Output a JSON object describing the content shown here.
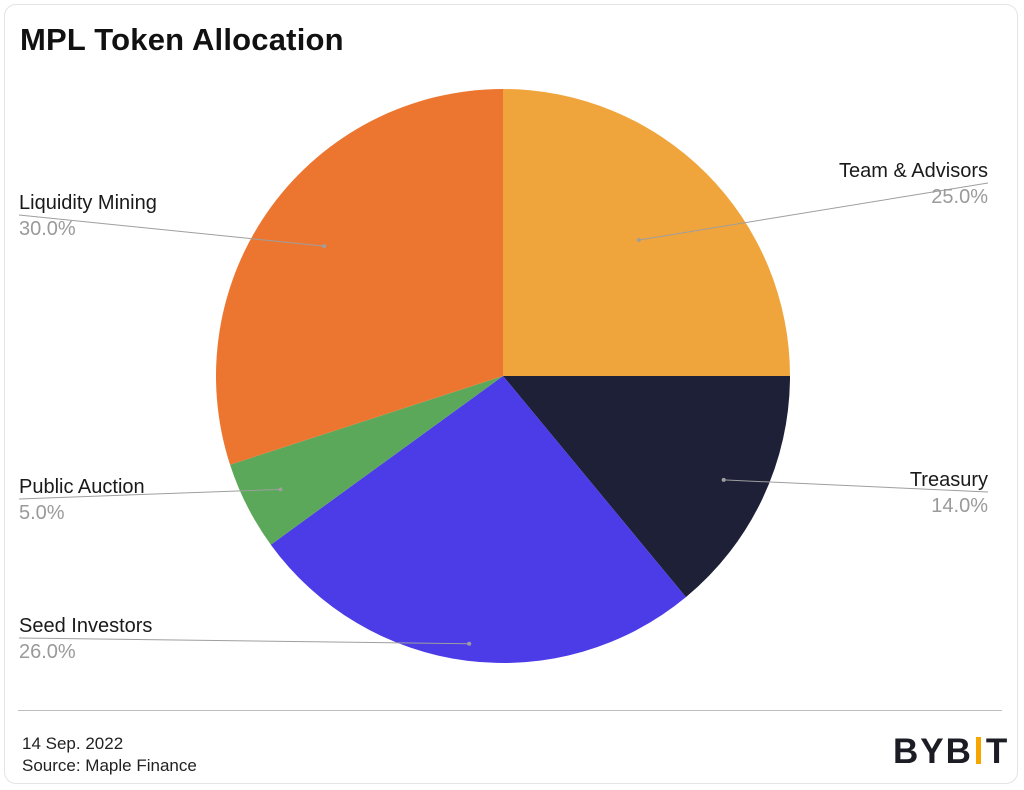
{
  "chart_data": {
    "type": "pie",
    "title": "MPL Token Allocation",
    "slices": [
      {
        "label": "Team & Advisors",
        "value": 25.0,
        "value_label": "25.0%",
        "color": "#F0A53C",
        "label_side": "right"
      },
      {
        "label": "Treasury",
        "value": 14.0,
        "value_label": "14.0%",
        "color": "#1E2038",
        "label_side": "right"
      },
      {
        "label": "Seed Investors",
        "value": 26.0,
        "value_label": "26.0%",
        "color": "#4B3CE8",
        "label_side": "left"
      },
      {
        "label": "Public Auction",
        "value": 5.0,
        "value_label": "5.0%",
        "color": "#5BA85A",
        "label_side": "left"
      },
      {
        "label": "Liquidity Mining",
        "value": 30.0,
        "value_label": "30.0%",
        "color": "#EC7630",
        "label_side": "left"
      }
    ],
    "start_angle": "12 o'clock",
    "direction": "clockwise",
    "legend": "none"
  },
  "footer": {
    "date": "14 Sep. 2022",
    "source": "Source: Maple Finance"
  },
  "brand": {
    "name": "BYBIT",
    "left_text": "BYB",
    "right_text": "T",
    "accent_color": "#F7A600"
  }
}
